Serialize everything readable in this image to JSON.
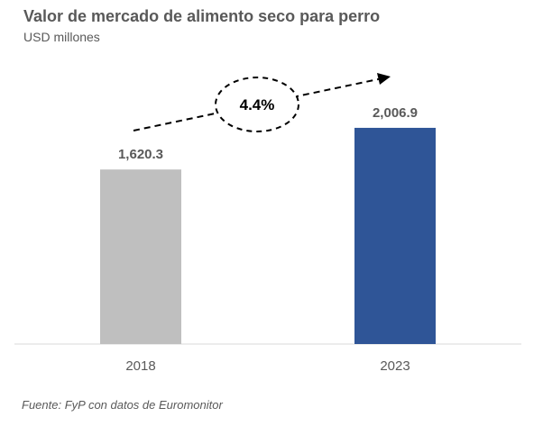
{
  "chart_data": {
    "type": "bar",
    "title": "Valor de mercado de alimento seco para perro",
    "subtitle": "USD millones",
    "categories": [
      "2018",
      "2023"
    ],
    "values": [
      1620.3,
      2006.9
    ],
    "value_labels": [
      "1,620.3",
      "2,006.9"
    ],
    "bar_colors": [
      "#bfbfbf",
      "#2f5597"
    ],
    "ylim": [
      0,
      2600
    ],
    "grid": false,
    "legend": "none",
    "annotation": {
      "text": "4.4%",
      "style": "dashed arrow with dashed ellipse"
    },
    "source": "Fuente: FyP con datos de Euromonitor"
  },
  "colors": {
    "text": "#595959",
    "axis": "#d9d9d9",
    "annotation": "#000000"
  }
}
